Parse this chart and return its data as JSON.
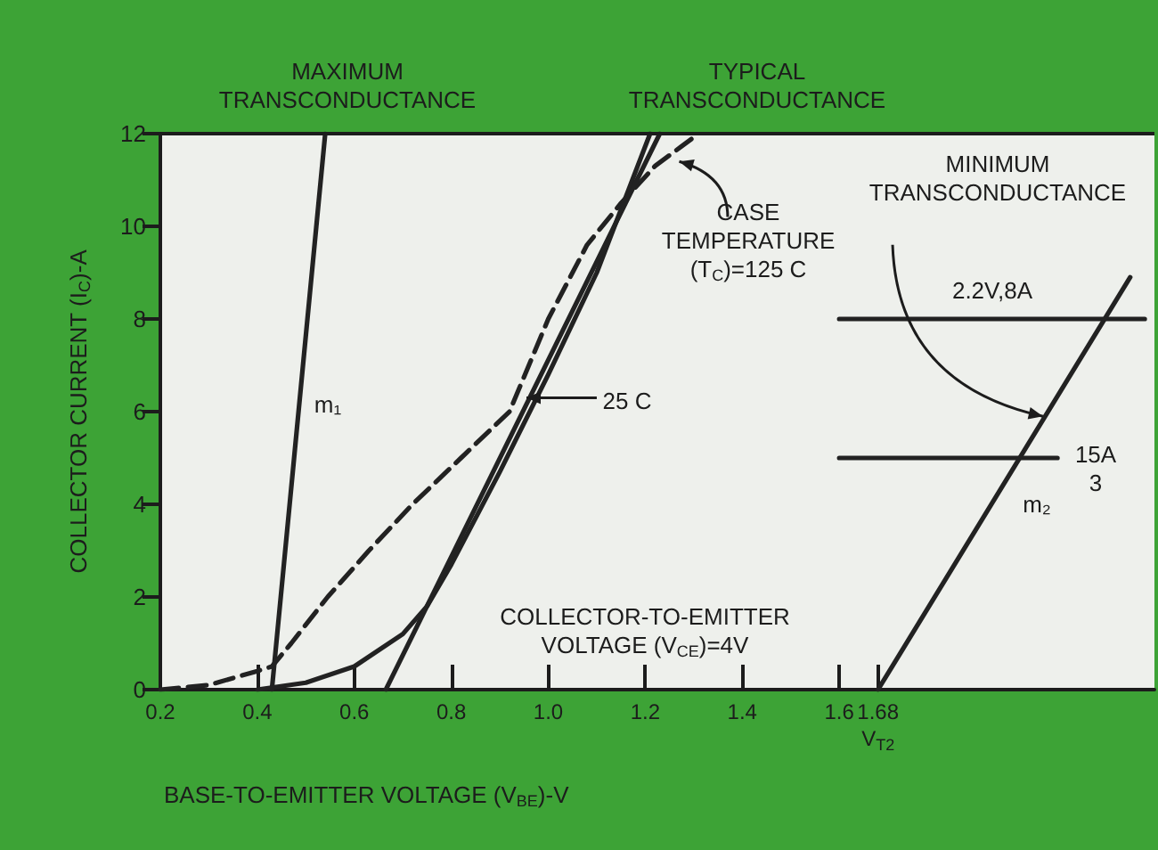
{
  "chart_data": {
    "type": "line",
    "xlabel": "BASE-TO-EMITTER VOLTAGE (V$_{BE}$)-V",
    "ylabel": "COLLECTOR CURRENT (I$_{C}$)-A",
    "xlim": [
      0.2,
      2.25
    ],
    "ylim": [
      0,
      12
    ],
    "xticks": [
      {
        "value": 0.2,
        "label": "0.2"
      },
      {
        "value": 0.4,
        "label": "0.4"
      },
      {
        "value": 0.6,
        "label": "0.6"
      },
      {
        "value": 0.8,
        "label": "0.8"
      },
      {
        "value": 1,
        "label": "1.0"
      },
      {
        "value": 1.2,
        "label": "1.2"
      },
      {
        "value": 1.4,
        "label": "1.4"
      },
      {
        "value": 1.6,
        "label": "1.6"
      },
      {
        "value": 1.68,
        "label": "1.68\nV$_{T2}$"
      }
    ],
    "yticks": [
      0,
      2,
      4,
      6,
      8,
      10,
      12
    ],
    "grid": false,
    "marker": "none",
    "series": [
      {
        "color": "#222222",
        "line_style": "solid",
        "x": [
          0.43,
          0.54
        ],
        "values": [
          0,
          12
        ]
      },
      {
        "color": "#222222",
        "line_style": "dashed",
        "x": [
          0.2,
          0.3,
          0.4,
          0.43,
          0.47,
          0.545,
          0.63,
          0.72,
          0.82,
          0.92,
          1.0,
          1.08,
          1.15,
          1.22,
          1.31
        ],
        "values": [
          0,
          0.1,
          0.4,
          0.5,
          1,
          2,
          3,
          4,
          5,
          6,
          8,
          9.6,
          10.5,
          11.3,
          12
        ]
      },
      {
        "color": "#222222",
        "line_style": "solid",
        "x": [
          0.4,
          0.5,
          0.6,
          0.7,
          0.75,
          0.8,
          0.9,
          1.0,
          1.1,
          1.21
        ],
        "values": [
          0,
          0.15,
          0.5,
          1.2,
          1.8,
          2.7,
          4.7,
          6.8,
          9,
          12
        ]
      },
      {
        "color": "#222222",
        "line_style": "solid",
        "x": [
          0.665,
          1.23
        ],
        "values": [
          0,
          12
        ]
      },
      {
        "color": "#222222",
        "line_style": "solid",
        "x": [
          1.68,
          2.2
        ],
        "values": [
          0,
          8.9
        ]
      },
      {
        "color": "#222222",
        "line_style": "solid",
        "x": [
          1.6,
          2.23
        ],
        "values": [
          8,
          8
        ]
      },
      {
        "color": "#222222",
        "line_style": "solid",
        "x": [
          1.6,
          2.05
        ],
        "values": [
          5,
          5
        ]
      }
    ],
    "annotations": [
      "MAXIMUM\nTRANSCONDUCTANCE",
      "TYPICAL\nTRANSCONDUCTANCE",
      "CASE\nTEMPERATURE\n(T$_{C}$)=125 C",
      "MINIMUM\nTRANSCONDUCTANCE",
      "2.2V,8A",
      "15A\n3",
      "m₁",
      "m₂",
      "25 C",
      "COLLECTOR-TO-EMITTER\nVOLTAGE (V$_{CE}$)=4V"
    ]
  }
}
